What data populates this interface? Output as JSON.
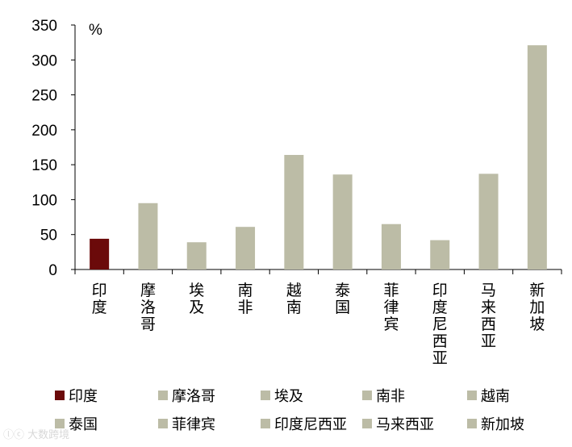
{
  "chart_data": {
    "type": "bar",
    "unit": "%",
    "categories": [
      "印度",
      "摩洛哥",
      "埃及",
      "南非",
      "越南",
      "泰国",
      "菲律宾",
      "印度尼西亚",
      "马来西亚",
      "新加坡"
    ],
    "values": [
      44,
      95,
      39,
      61,
      164,
      136,
      65,
      42,
      137,
      321
    ],
    "ylim": [
      0,
      350
    ],
    "yticks": [
      0,
      50,
      100,
      150,
      200,
      250,
      300,
      350
    ],
    "grid": false,
    "legend_position": "bottom",
    "colors": {
      "highlight": "#6B0A0A",
      "default": "#BCBCA6"
    },
    "highlight_index": 0
  },
  "watermark": "ⓛⓒ 大数跨境"
}
